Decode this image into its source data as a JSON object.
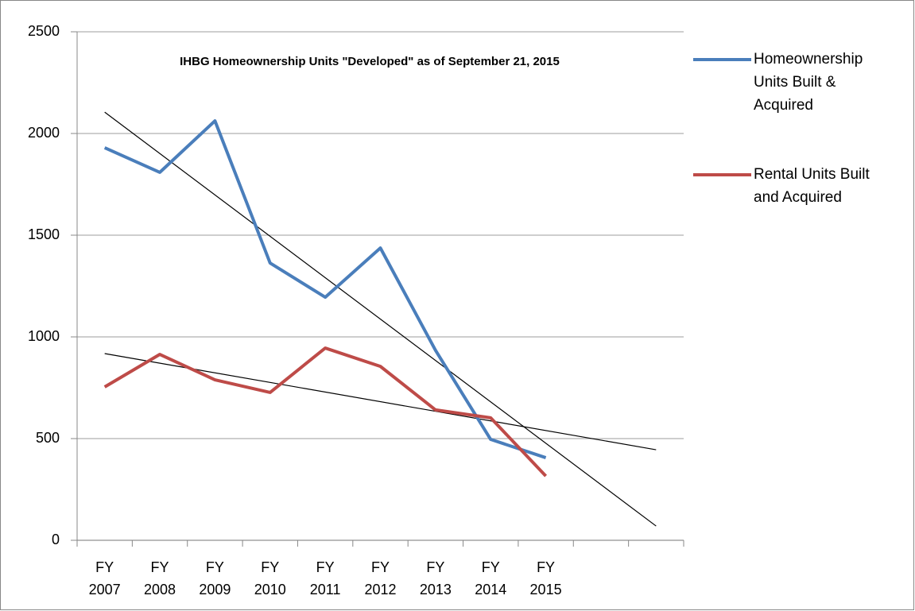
{
  "chart_data": {
    "type": "line",
    "title": "IHBG Homeownership Units \"Developed\" as of September 21, 2015",
    "categories": [
      "FY 2007",
      "FY 2008",
      "FY 2009",
      "FY 2010",
      "FY 2011",
      "FY 2012",
      "FY 2013",
      "FY 2014",
      "FY 2015",
      null,
      null
    ],
    "series": [
      {
        "name": "Homeownership Units Built & Acquired",
        "color": "#4a7ebb",
        "values": [
          1930,
          1809,
          2062,
          1363,
          1195,
          1437,
          934,
          496,
          406,
          null,
          null
        ]
      },
      {
        "name": "Rental Units Built and Acquired",
        "color": "#be4b48",
        "values": [
          754,
          914,
          789,
          727,
          945,
          855,
          641,
          602,
          316,
          null,
          null
        ]
      }
    ],
    "trendlines": [
      {
        "color": "#000000",
        "x": [
          0,
          10
        ],
        "values": [
          2105,
          70
        ]
      },
      {
        "color": "#000000",
        "x": [
          0,
          10
        ],
        "values": [
          918,
          445
        ]
      }
    ],
    "ylim": [
      0,
      2500
    ],
    "yticks": [
      0,
      500,
      1000,
      1500,
      2000,
      2500
    ],
    "grid": true,
    "legend": "right"
  }
}
